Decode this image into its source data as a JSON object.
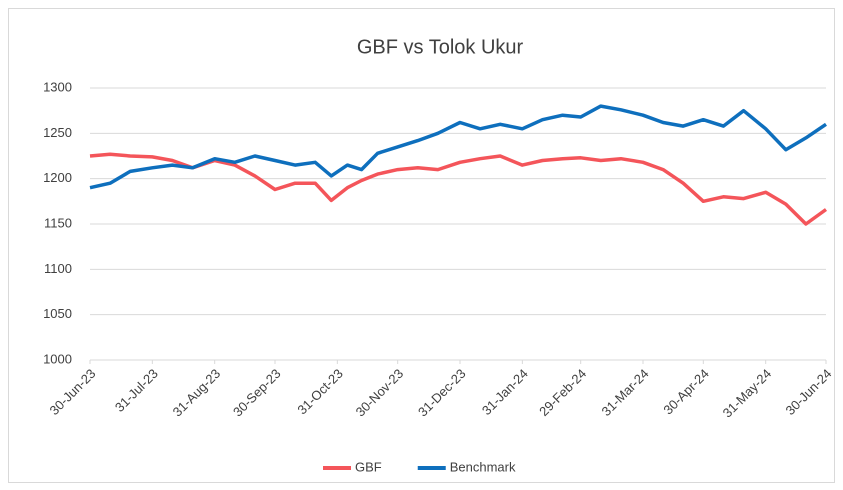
{
  "chart_data": {
    "type": "line",
    "title": "GBF vs Tolok Ukur",
    "x": [
      "2023-06-30",
      "2023-07-10",
      "2023-07-20",
      "2023-07-31",
      "2023-08-10",
      "2023-08-20",
      "2023-08-31",
      "2023-09-10",
      "2023-09-20",
      "2023-09-30",
      "2023-10-10",
      "2023-10-20",
      "2023-10-28",
      "2023-11-05",
      "2023-11-12",
      "2023-11-20",
      "2023-11-30",
      "2023-12-10",
      "2023-12-20",
      "2023-12-31",
      "2024-01-10",
      "2024-01-20",
      "2024-01-31",
      "2024-02-10",
      "2024-02-20",
      "2024-02-29",
      "2024-03-10",
      "2024-03-20",
      "2024-03-31",
      "2024-04-10",
      "2024-04-20",
      "2024-04-30",
      "2024-05-10",
      "2024-05-20",
      "2024-05-31",
      "2024-06-10",
      "2024-06-20",
      "2024-06-30"
    ],
    "series": [
      {
        "name": "GBF",
        "color": "#f4555a",
        "values": [
          1225,
          1227,
          1225,
          1224,
          1220,
          1212,
          1220,
          1215,
          1203,
          1188,
          1195,
          1195,
          1176,
          1190,
          1198,
          1205,
          1210,
          1212,
          1210,
          1218,
          1222,
          1225,
          1215,
          1220,
          1222,
          1223,
          1220,
          1222,
          1218,
          1210,
          1195,
          1175,
          1180,
          1178,
          1185,
          1172,
          1150,
          1166
        ]
      },
      {
        "name": "Benchmark",
        "color": "#0e6fbd",
        "values": [
          1190,
          1195,
          1208,
          1212,
          1215,
          1212,
          1222,
          1218,
          1225,
          1220,
          1215,
          1218,
          1203,
          1215,
          1210,
          1228,
          1235,
          1242,
          1250,
          1262,
          1255,
          1260,
          1255,
          1265,
          1270,
          1268,
          1280,
          1276,
          1270,
          1262,
          1258,
          1265,
          1258,
          1275,
          1255,
          1232,
          1245,
          1260
        ]
      }
    ],
    "xlim": [
      "2023-06-30",
      "2024-06-30"
    ],
    "xticks": [
      {
        "value": "2023-06-30",
        "label": "30-Jun-23"
      },
      {
        "value": "2023-07-31",
        "label": "31-Jul-23"
      },
      {
        "value": "2023-08-31",
        "label": "31-Aug-23"
      },
      {
        "value": "2023-09-30",
        "label": "30-Sep-23"
      },
      {
        "value": "2023-10-31",
        "label": "31-Oct-23"
      },
      {
        "value": "2023-11-30",
        "label": "30-Nov-23"
      },
      {
        "value": "2023-12-31",
        "label": "31-Dec-23"
      },
      {
        "value": "2024-01-31",
        "label": "31-Jan-24"
      },
      {
        "value": "2024-02-29",
        "label": "29-Feb-24"
      },
      {
        "value": "2024-03-31",
        "label": "31-Mar-24"
      },
      {
        "value": "2024-04-30",
        "label": "30-Apr-24"
      },
      {
        "value": "2024-05-31",
        "label": "31-May-24"
      },
      {
        "value": "2024-06-30",
        "label": "30-Jun-24"
      }
    ],
    "ylim": [
      1000,
      1300
    ],
    "yticks": [
      1000,
      1050,
      1100,
      1150,
      1200,
      1250,
      1300
    ],
    "grid": true,
    "legend": "bottom"
  }
}
